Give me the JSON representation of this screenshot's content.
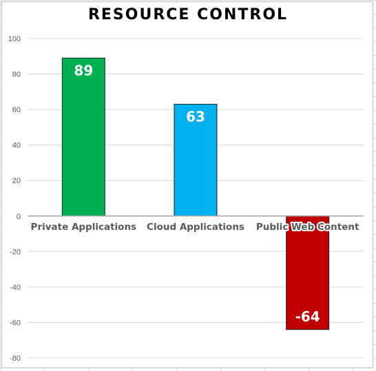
{
  "chart_data": {
    "type": "bar",
    "title": "RESOURCE CONTROL",
    "xlabel": "",
    "ylabel": "",
    "categories": [
      "Private Applications",
      "Cloud Applications",
      "Public Web Content"
    ],
    "values": [
      89,
      63,
      -64
    ],
    "value_labels": [
      "89",
      "63",
      "-64"
    ],
    "bar_colors": [
      "#00b050",
      "#00b0f0",
      "#c00000"
    ],
    "ylim": [
      -80,
      100
    ],
    "yticks": [
      100,
      80,
      60,
      40,
      20,
      0,
      -20,
      -40,
      -60,
      -80
    ],
    "ytick_labels": [
      "100",
      "80",
      "60",
      "40",
      "20",
      "0",
      "-20",
      "-40",
      "-60",
      "-80"
    ],
    "grid": true,
    "legend": "none"
  }
}
